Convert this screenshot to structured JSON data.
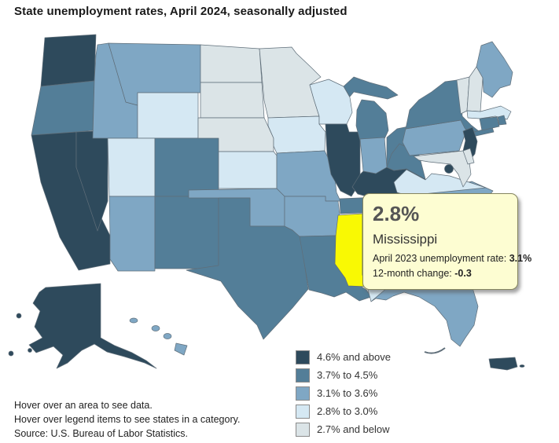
{
  "title": "State unemployment rates, April 2024, seasonally adjusted",
  "tooltip": {
    "rate": "2.8%",
    "state": "Mississippi",
    "prev_label": "April 2023 unemployment rate: ",
    "prev_value": "3.1%",
    "change_label": "12-month change: ",
    "change_value": "-0.3"
  },
  "legend": [
    {
      "label": "4.6% and above",
      "color": "#2E4A5C"
    },
    {
      "label": "3.7% to 4.5%",
      "color": "#537E98"
    },
    {
      "label": "3.1% to 3.6%",
      "color": "#7FA7C4"
    },
    {
      "label": "2.8% to 3.0%",
      "color": "#D5E8F3"
    },
    {
      "label": "2.7% and below",
      "color": "#DBE4E7"
    }
  ],
  "footer": [
    "Hover over an area to see data.",
    "Hover over legend items to see states in a category.",
    "Source: U.S. Bureau of Labor Statistics."
  ],
  "chart_data": {
    "type": "choropleth",
    "region": "United States (states, DC, Puerto Rico)",
    "title": "State unemployment rates, April 2024, seasonally adjusted",
    "legend_position": "bottom-right",
    "categories": [
      "4.6% and above",
      "3.7% to 4.5%",
      "3.1% to 3.6%",
      "2.8% to 3.0%",
      "2.7% and below"
    ],
    "highlighted_state_code": "MS",
    "highlight_color": "#F9F903",
    "highlighted_state": {
      "name": "Mississippi",
      "april_2024_rate": "2.8%",
      "april_2023_rate": "3.1%",
      "twelve_month_change": "-0.3"
    },
    "states": {
      "WA": "4.6% and above",
      "CA": "4.6% and above",
      "NV": "4.6% and above",
      "AK": "4.6% and above",
      "IL": "4.6% and above",
      "KY": "4.6% and above",
      "NJ": "4.6% and above",
      "DC": "4.6% and above",
      "PR": "4.6% and above",
      "OR": "3.7% to 4.5%",
      "CO": "3.7% to 4.5%",
      "NM": "3.7% to 4.5%",
      "TX": "3.7% to 4.5%",
      "LA": "3.7% to 4.5%",
      "MI": "3.7% to 4.5%",
      "OH": "3.7% to 4.5%",
      "WV": "3.7% to 4.5%",
      "NY": "3.7% to 4.5%",
      "CT": "3.7% to 4.5%",
      "RI": "3.7% to 4.5%",
      "TN": "3.7% to 4.5%",
      "ID": "3.1% to 3.6%",
      "MT": "3.1% to 3.6%",
      "AZ": "3.1% to 3.6%",
      "OK": "3.1% to 3.6%",
      "AR": "3.1% to 3.6%",
      "MO": "3.1% to 3.6%",
      "IN": "3.1% to 3.6%",
      "PA": "3.1% to 3.6%",
      "ME": "3.1% to 3.6%",
      "FL": "3.1% to 3.6%",
      "GA": "3.1% to 3.6%",
      "NC": "3.1% to 3.6%",
      "SC": "3.1% to 3.6%",
      "HI": "3.1% to 3.6%",
      "WY": "2.8% to 3.0%",
      "UT": "2.8% to 3.0%",
      "KS": "2.8% to 3.0%",
      "IA": "2.8% to 3.0%",
      "WI": "2.8% to 3.0%",
      "VA": "2.8% to 3.0%",
      "MA": "2.8% to 3.0%",
      "AL": "2.8% to 3.0%",
      "MS": "2.8% to 3.0%",
      "ND": "2.7% and below",
      "SD": "2.7% and below",
      "NE": "2.7% and below",
      "MN": "2.7% and below",
      "VT": "2.7% and below",
      "NH": "2.7% and below",
      "MD": "2.7% and below",
      "DE": "2.7% and below"
    }
  }
}
